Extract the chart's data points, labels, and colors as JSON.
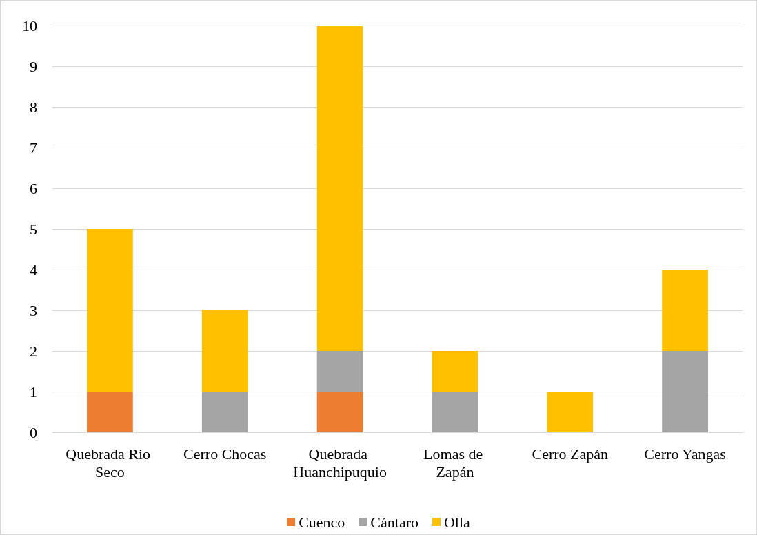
{
  "chart_data": {
    "type": "bar",
    "stacked": true,
    "categories": [
      "Quebrada Rio Seco",
      "Cerro Chocas",
      "Quebrada Huanchipuquio",
      "Lomas de Zapán",
      "Cerro Zapán",
      "Cerro Yangas"
    ],
    "series": [
      {
        "name": "Cuenco",
        "color": "#ed7d31",
        "values": [
          1,
          0,
          1,
          0,
          0,
          0
        ]
      },
      {
        "name": "Cántaro",
        "color": "#a5a5a5",
        "values": [
          0,
          1,
          1,
          1,
          0,
          2
        ]
      },
      {
        "name": "Olla",
        "color": "#ffc000",
        "values": [
          4,
          2,
          8,
          1,
          1,
          2
        ]
      }
    ],
    "ylim": [
      0,
      10
    ],
    "yticks": [
      0,
      1,
      2,
      3,
      4,
      5,
      6,
      7,
      8,
      9,
      10
    ],
    "grid": "y",
    "legend": "bottom"
  }
}
